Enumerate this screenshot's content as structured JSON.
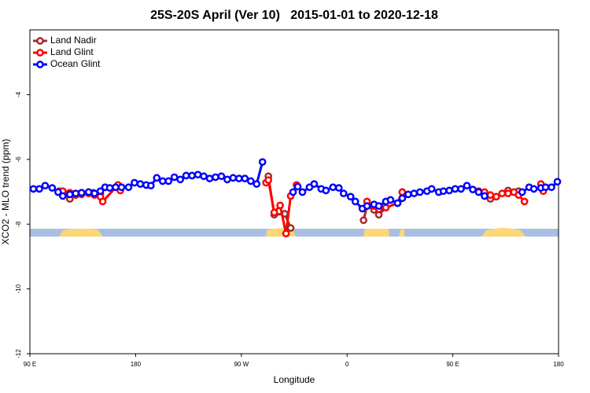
{
  "chart_data": {
    "type": "line",
    "title": "25S-20S April (Ver 10)   2015-01-01 to 2020-12-18",
    "xlabel": "Longitude",
    "ylabel": "XCO2 - MLO trend (ppm)",
    "xlim": [
      90,
      540
    ],
    "ylim": [
      -12,
      -2
    ],
    "xticks": [
      {
        "value": 90,
        "label": "90 E"
      },
      180,
      {
        "value": 270,
        "label": "90 W"
      },
      {
        "value": 360,
        "label": "0"
      },
      {
        "value": 450,
        "label": "90 E"
      },
      {
        "value": 540,
        "label": "180"
      }
    ],
    "yticks": [
      -12,
      -10,
      -8,
      -6,
      -4
    ],
    "legend": "upper left",
    "series": [
      {
        "name": "Land Nadir",
        "color": "#a52a2a",
        "x": [
          115,
          124,
          129,
          134,
          144,
          150,
          160,
          167,
          250,
          293,
          298,
          307,
          312,
          350,
          374,
          377,
          383,
          387,
          393,
          403,
          407,
          440,
          477,
          482,
          487,
          497,
          506
        ],
        "values": [
          -6.98,
          -7.22,
          -7.1,
          -7.08,
          -7.03,
          -7.08,
          null,
          -6.86,
          null,
          -6.52,
          -7.71,
          -7.68,
          -8.12,
          null,
          -7.88,
          -7.44,
          -7.56,
          -7.71,
          -7.49,
          -7.35,
          -7.01,
          null,
          -7.03,
          -7.22,
          -7.15,
          -6.96,
          -6.98
        ]
      },
      {
        "name": "Land Glint",
        "color": "#ff0000",
        "x": [
          118,
          124,
          129,
          134,
          140,
          145,
          150,
          152,
          165,
          167,
          250,
          291,
          293,
          298,
          303,
          308,
          312,
          317,
          350,
          377,
          383,
          387,
          393,
          403,
          407,
          440,
          472,
          477,
          482,
          487,
          492,
          497,
          502,
          506,
          511,
          515,
          525,
          527
        ],
        "values": [
          -6.98,
          -7.03,
          -7.1,
          -7.03,
          -7.05,
          -7.1,
          -7.15,
          -7.3,
          -6.79,
          -6.96,
          null,
          -6.72,
          -6.64,
          -7.64,
          -7.42,
          -8.29,
          -7.13,
          -6.79,
          null,
          -7.3,
          -7.44,
          -7.54,
          -7.49,
          -7.35,
          -7.01,
          null,
          -6.98,
          -7.01,
          -7.1,
          -7.15,
          -7.05,
          -7.05,
          -7.01,
          -7.1,
          -7.3,
          null,
          -6.76,
          -6.98
        ]
      },
      {
        "name": "Ocean Glint",
        "color": "#0000ff",
        "x": [
          93,
          98,
          103,
          109,
          114,
          118,
          124,
          129,
          134,
          140,
          145,
          150,
          154,
          158,
          163,
          168,
          174,
          179,
          184,
          189,
          193,
          198,
          203,
          208,
          213,
          218,
          223,
          228,
          233,
          238,
          243,
          248,
          253,
          258,
          263,
          268,
          273,
          278,
          283,
          288,
          300,
          314,
          318,
          322,
          328,
          332,
          338,
          342,
          348,
          353,
          357,
          363,
          367,
          373,
          377,
          383,
          387,
          393,
          397,
          403,
          407,
          412,
          417,
          422,
          428,
          432,
          438,
          442,
          447,
          452,
          457,
          462,
          467,
          472,
          477,
          495,
          509,
          515,
          519,
          525,
          529,
          534,
          539
        ],
        "values": [
          -6.91,
          -6.91,
          -6.81,
          -6.88,
          -7.01,
          -7.13,
          -7.08,
          -7.05,
          -7.03,
          -7.01,
          -7.05,
          -6.98,
          -6.86,
          -6.88,
          -6.86,
          -6.86,
          -6.86,
          -6.72,
          -6.76,
          -6.79,
          -6.81,
          -6.57,
          -6.67,
          -6.67,
          -6.55,
          -6.62,
          -6.5,
          -6.5,
          -6.47,
          -6.52,
          -6.59,
          -6.55,
          -6.52,
          -6.62,
          -6.57,
          -6.59,
          -6.59,
          -6.67,
          -6.76,
          -6.08,
          null,
          -7.01,
          -6.84,
          -7.01,
          -6.86,
          -6.76,
          -6.91,
          -6.96,
          -6.86,
          -6.88,
          -7.05,
          -7.15,
          -7.3,
          -7.52,
          -7.44,
          -7.39,
          -7.44,
          -7.3,
          -7.25,
          -7.35,
          -7.2,
          -7.08,
          -7.05,
          -7.01,
          -6.98,
          -6.91,
          -7.01,
          -6.98,
          -6.96,
          -6.91,
          -6.91,
          -6.81,
          -6.93,
          -7.01,
          -7.13,
          null,
          -7.01,
          -6.86,
          -6.91,
          -6.88,
          -6.86,
          -6.86,
          -6.69
        ]
      }
    ]
  }
}
